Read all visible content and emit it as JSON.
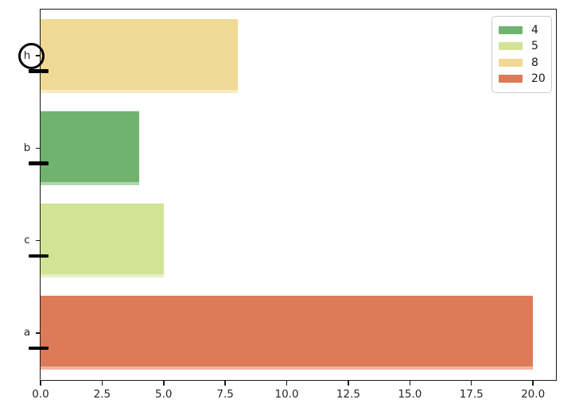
{
  "chart_data": {
    "type": "bar",
    "orientation": "horizontal",
    "title": "",
    "xlabel": "",
    "ylabel": "",
    "categories": [
      "h",
      "b",
      "c",
      "a"
    ],
    "values": [
      8,
      4,
      5,
      20
    ],
    "bar_colors": [
      "#f0d995",
      "#6fb36f",
      "#d2e396",
      "#dd7a58"
    ],
    "bar_rel_height": 0.8,
    "xlim": [
      0,
      20.9
    ],
    "xticks": [
      0,
      2.5,
      5,
      7.5,
      10,
      12.5,
      15,
      17.5,
      20
    ],
    "xtick_labels": [
      "0.0",
      "2.5",
      "5.0",
      "7.5",
      "10.0",
      "12.5",
      "15.0",
      "17.5",
      "20.0"
    ],
    "grid": false,
    "axis_color": "#1a1a1a",
    "tick_label_color": "#262626",
    "legend": {
      "position": "upper-right",
      "entries": [
        {
          "label": "4",
          "color": "#6fb36f"
        },
        {
          "label": "5",
          "color": "#d2e396"
        },
        {
          "label": "8",
          "color": "#f0d995"
        },
        {
          "label": "20",
          "color": "#dd7a58"
        }
      ]
    },
    "annotations": [
      {
        "type": "circle-marker",
        "around": "y-tick-label-h",
        "stroke": "#000000"
      },
      {
        "type": "bold-tick",
        "below_category": "h",
        "stroke": "#000000"
      },
      {
        "type": "bold-tick",
        "below_category": "b",
        "stroke": "#000000"
      },
      {
        "type": "bold-tick",
        "below_category": "c",
        "stroke": "#000000"
      },
      {
        "type": "bold-tick",
        "below_category": "a",
        "stroke": "#000000"
      }
    ]
  }
}
